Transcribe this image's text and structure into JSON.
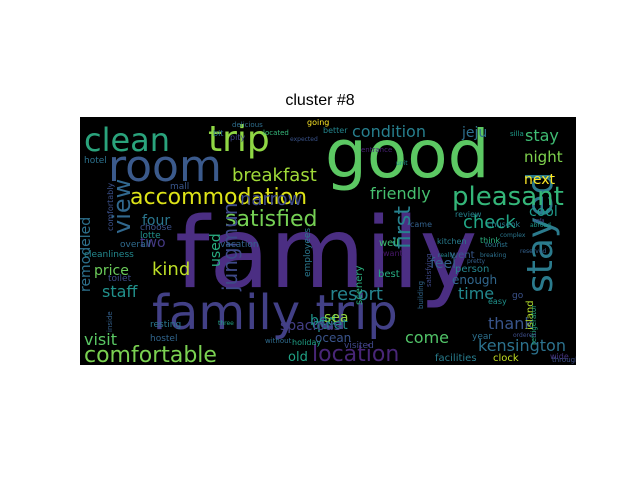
{
  "title": "cluster  #8",
  "words": [
    {
      "text": "family",
      "color": "#4b2e83"
    },
    {
      "text": "good",
      "color": "#5cc863"
    },
    {
      "text": "family trip",
      "color": "#424086"
    },
    {
      "text": "room",
      "color": "#3b5a8c"
    },
    {
      "text": "clean",
      "color": "#2aa37c"
    },
    {
      "text": "trip",
      "color": "#8fd744"
    },
    {
      "text": "accommodation",
      "color": "#dde318"
    },
    {
      "text": "stayed",
      "color": "#2b7b8d"
    },
    {
      "text": "pleasant",
      "color": "#34b679"
    },
    {
      "text": "comfortable",
      "color": "#7ad151"
    },
    {
      "text": "location",
      "color": "#482677"
    },
    {
      "text": "satisfied",
      "color": "#75d054"
    },
    {
      "text": "view",
      "color": "#31688e"
    },
    {
      "text": "breakfast",
      "color": "#a0da39"
    },
    {
      "text": "narrow",
      "color": "#3e4989"
    },
    {
      "text": "condition",
      "color": "#277f8e"
    },
    {
      "text": "check",
      "color": "#21a685"
    },
    {
      "text": "first",
      "color": "#26818e"
    },
    {
      "text": "friendly",
      "color": "#46c06f"
    },
    {
      "text": "stay",
      "color": "#3fbc73"
    },
    {
      "text": "night",
      "color": "#7fd34e"
    },
    {
      "text": "jeju",
      "color": "#2e6f8e"
    },
    {
      "text": "next",
      "color": "#fde725"
    },
    {
      "text": "cool",
      "color": "#1f998a"
    },
    {
      "text": "kind",
      "color": "#bddf26"
    },
    {
      "text": "price",
      "color": "#6ccd5a"
    },
    {
      "text": "four",
      "color": "#2a768e"
    },
    {
      "text": "two",
      "color": "#443983"
    },
    {
      "text": "remodeled",
      "color": "#2d718e"
    },
    {
      "text": "staff",
      "color": "#21918c"
    },
    {
      "text": "used",
      "color": "#28ae80"
    },
    {
      "text": "jungmun",
      "color": "#3e4a89"
    },
    {
      "text": "resort",
      "color": "#25848e"
    },
    {
      "text": "time",
      "color": "#23888e"
    },
    {
      "text": "bed",
      "color": "#1f948c"
    },
    {
      "text": "sea",
      "color": "#94d840"
    },
    {
      "text": "quiet",
      "color": "#238a8d"
    },
    {
      "text": "thank",
      "color": "#39558c"
    },
    {
      "text": "kensington",
      "color": "#2c728e"
    },
    {
      "text": "come",
      "color": "#52c569"
    },
    {
      "text": "old",
      "color": "#20a386"
    },
    {
      "text": "visit",
      "color": "#5ac864"
    },
    {
      "text": "spacious",
      "color": "#433e85"
    },
    {
      "text": "ocean",
      "color": "#3a548c"
    },
    {
      "text": "feel",
      "color": "#35608d"
    },
    {
      "text": "enough",
      "color": "#31678e"
    },
    {
      "text": "island",
      "color": "#b5de2b"
    },
    {
      "text": "facilities",
      "color": "#287d8e"
    },
    {
      "text": "clock",
      "color": "#c2df23"
    },
    {
      "text": "year",
      "color": "#2d708e"
    },
    {
      "text": "went",
      "color": "#38588c"
    },
    {
      "text": "person",
      "color": "#25858e"
    },
    {
      "text": "go",
      "color": "#3b528b"
    },
    {
      "text": "best",
      "color": "#26ad81"
    },
    {
      "text": "well",
      "color": "#3dbc74"
    },
    {
      "text": "want",
      "color": "#48186a"
    },
    {
      "text": "scenery",
      "color": "#29af7f"
    },
    {
      "text": "employees",
      "color": "#2a788e"
    },
    {
      "text": "vacation",
      "color": "#33638d"
    },
    {
      "text": "overall",
      "color": "#2f6b8e"
    },
    {
      "text": "cleanliness",
      "color": "#23898e"
    },
    {
      "text": "choose",
      "color": "#3b528b"
    },
    {
      "text": "lotte",
      "color": "#21918c"
    },
    {
      "text": "hotel",
      "color": "#2c728e"
    },
    {
      "text": "toilet",
      "color": "#3e4c8a"
    },
    {
      "text": "resting",
      "color": "#2a778e"
    },
    {
      "text": "hostel",
      "color": "#31668e"
    },
    {
      "text": "visited",
      "color": "#3f4889"
    },
    {
      "text": "holiday",
      "color": "#1fa287"
    },
    {
      "text": "wide",
      "color": "#46337f"
    },
    {
      "text": "came",
      "color": "#33628d"
    },
    {
      "text": "review",
      "color": "#26828e"
    },
    {
      "text": "think",
      "color": "#2ab07f"
    },
    {
      "text": "kitchen",
      "color": "#287c8e"
    },
    {
      "text": "easy",
      "color": "#20928c"
    },
    {
      "text": "mall",
      "color": "#39568c"
    },
    {
      "text": "bit",
      "color": "#2c718e"
    },
    {
      "text": "pity",
      "color": "#404588"
    },
    {
      "text": "delicious",
      "color": "#2e6e8e"
    },
    {
      "text": "going",
      "color": "#fde725"
    },
    {
      "text": "better",
      "color": "#24868e"
    },
    {
      "text": "located",
      "color": "#35b779"
    },
    {
      "text": "satisfying",
      "color": "#3e4989"
    },
    {
      "text": "building",
      "color": "#31688e"
    },
    {
      "text": "chuseok",
      "color": "#277e8e"
    },
    {
      "text": "throughout",
      "color": "#3c4f8a"
    },
    {
      "text": "refrigerator",
      "color": "#25ab82"
    },
    {
      "text": "comfortably",
      "color": "#3b518b"
    },
    {
      "text": "silla",
      "color": "#1e9c89"
    },
    {
      "text": "tourist",
      "color": "#2b748e"
    },
    {
      "text": "entrance",
      "color": "#482374"
    },
    {
      "text": "breaking",
      "color": "#2d718e"
    },
    {
      "text": "unit",
      "color": "#21908d"
    },
    {
      "text": "expected",
      "color": "#3a538b"
    },
    {
      "text": "inside",
      "color": "#34618d"
    },
    {
      "text": "without",
      "color": "#2f6c8e"
    },
    {
      "text": "three",
      "color": "#20a486"
    },
    {
      "text": "pretty",
      "color": "#34608d"
    },
    {
      "text": "sofa",
      "color": "#404688"
    },
    {
      "text": "really",
      "color": "#25848e"
    },
    {
      "text": "ordered",
      "color": "#3d4e8a"
    },
    {
      "text": "complex",
      "color": "#2a768e"
    },
    {
      "text": "abroad",
      "color": "#1f988b"
    },
    {
      "text": "reserved",
      "color": "#34618d"
    }
  ]
}
